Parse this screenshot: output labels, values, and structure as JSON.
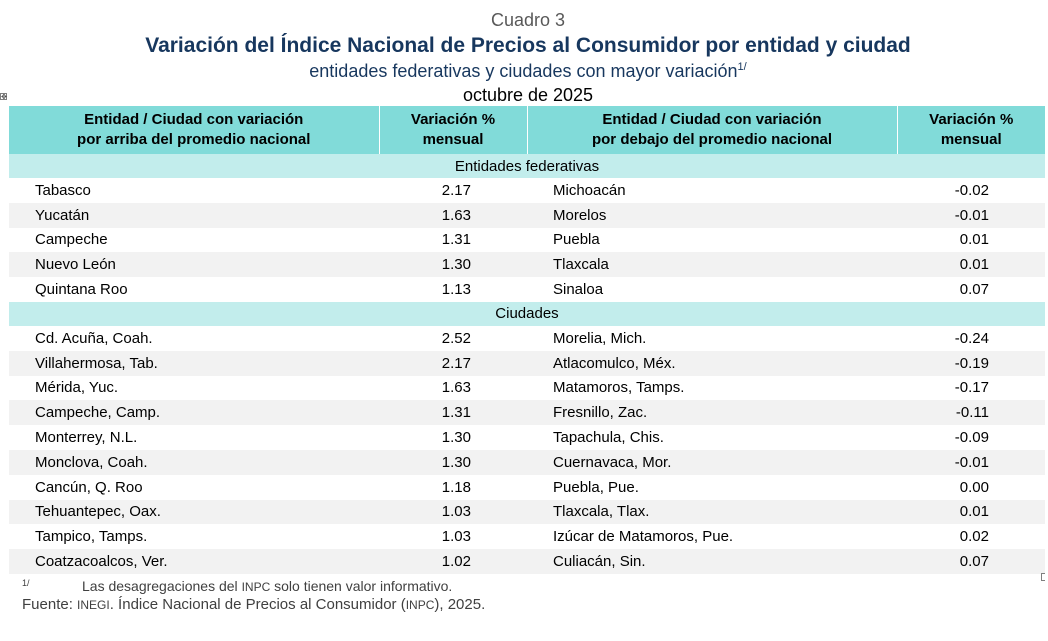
{
  "header": {
    "cuadro": "Cuadro 3",
    "title": "Variación del Índice Nacional de Precios al Consumidor por entidad y ciudad",
    "subtitle": "entidades federativas y ciudades con mayor variación",
    "subtitle_note": "1/",
    "period": "octubre de 2025"
  },
  "table": {
    "columns": {
      "above_line1": "Entidad / Ciudad con variación",
      "above_line2": "por arriba del promedio nacional",
      "var1_line1": "Variación %",
      "var1_line2": "mensual",
      "below_line1": "Entidad / Ciudad con variación",
      "below_line2": "por debajo del promedio nacional",
      "var2_line1": "Variación %",
      "var2_line2": "mensual"
    },
    "sections": [
      {
        "label": "Entidades federativas",
        "rows": [
          {
            "above": "Tabasco",
            "above_val": "2.17",
            "below": "Michoacán",
            "below_val": "-0.02"
          },
          {
            "above": "Yucatán",
            "above_val": "1.63",
            "below": "Morelos",
            "below_val": "-0.01"
          },
          {
            "above": "Campeche",
            "above_val": "1.31",
            "below": "Puebla",
            "below_val": "0.01"
          },
          {
            "above": "Nuevo León",
            "above_val": "1.30",
            "below": "Tlaxcala",
            "below_val": "0.01"
          },
          {
            "above": "Quintana Roo",
            "above_val": "1.13",
            "below": "Sinaloa",
            "below_val": "0.07"
          }
        ]
      },
      {
        "label": "Ciudades",
        "rows": [
          {
            "above": "Cd. Acuña, Coah.",
            "above_val": "2.52",
            "below": "Morelia, Mich.",
            "below_val": "-0.24"
          },
          {
            "above": "Villahermosa, Tab.",
            "above_val": "2.17",
            "below": "Atlacomulco, Méx.",
            "below_val": "-0.19"
          },
          {
            "above": "Mérida, Yuc.",
            "above_val": "1.63",
            "below": "Matamoros, Tamps.",
            "below_val": "-0.17"
          },
          {
            "above": "Campeche, Camp.",
            "above_val": "1.31",
            "below": "Fresnillo, Zac.",
            "below_val": "-0.11"
          },
          {
            "above": "Monterrey, N.L.",
            "above_val": "1.30",
            "below": "Tapachula, Chis.",
            "below_val": "-0.09"
          },
          {
            "above": "Monclova, Coah.",
            "above_val": "1.30",
            "below": "Cuernavaca, Mor.",
            "below_val": "-0.01"
          },
          {
            "above": "Cancún, Q. Roo",
            "above_val": "1.18",
            "below": "Puebla, Pue.",
            "below_val": "0.00"
          },
          {
            "above": "Tehuantepec, Oax.",
            "above_val": "1.03",
            "below": "Tlaxcala, Tlax.",
            "below_val": "0.01"
          },
          {
            "above": "Tampico, Tamps.",
            "above_val": "1.03",
            "below": "Izúcar de Matamoros, Pue.",
            "below_val": "0.02"
          },
          {
            "above": "Coatzacoalcos, Ver.",
            "above_val": "1.02",
            "below": "Culiacán, Sin.",
            "below_val": "0.07"
          }
        ]
      }
    ]
  },
  "footer": {
    "note_mark": "1/",
    "note_text_a": "Las desagregaciones del ",
    "note_abbr": "INPC",
    "note_text_b": " solo tienen valor informativo.",
    "source_label": "Fuente: ",
    "source_abbr1": "INEGI",
    "source_text_a": ". Índice Nacional de Precios al Consumidor (",
    "source_abbr2": "INPC",
    "source_text_b": "), 2025."
  },
  "icons": {
    "table_move_handle": "move-handle-icon"
  },
  "colors": {
    "header_bg": "#81dbd9",
    "section_bg": "#c2edec",
    "row_alt_bg": "#f2f2f2",
    "title_color": "#17375e"
  }
}
